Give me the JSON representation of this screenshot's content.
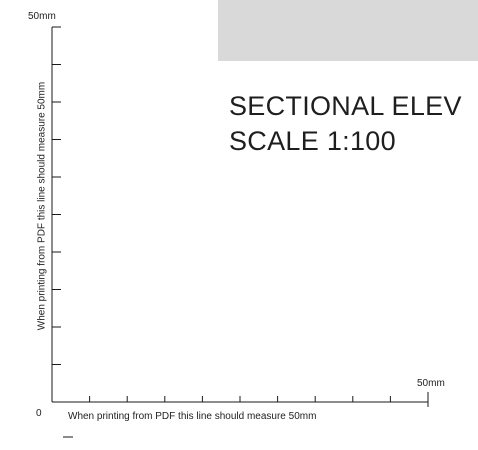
{
  "drawing": {
    "title_line1": "SECTIONAL ELEV",
    "title_line2": "SCALE 1:100"
  },
  "scale_bar": {
    "vertical_end_label": "50mm",
    "horizontal_end_label": "50mm",
    "origin_label": "0",
    "vertical_note": "When printing from PDF this line should measure 50mm",
    "horizontal_note": "When printing from PDF this line should measure 50mm",
    "length_mm": 50,
    "tick_interval_mm": 5
  },
  "colors": {
    "header_block": "#d9d9d9",
    "line": "#1a1a1a"
  }
}
